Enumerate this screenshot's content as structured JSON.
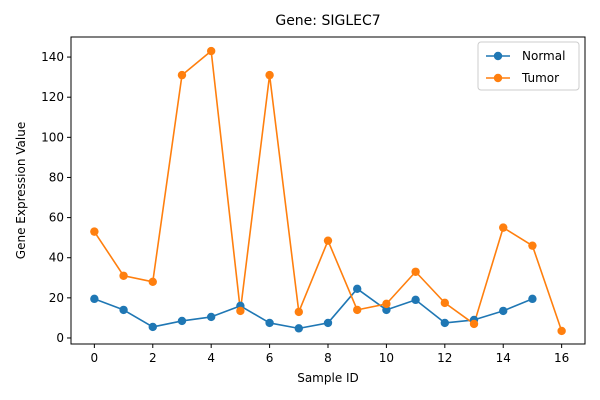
{
  "chart_data": {
    "type": "line",
    "title": "Gene: SIGLEC7",
    "xlabel": "Sample ID",
    "ylabel": "Gene Expression Value",
    "xlim": [
      -0.8,
      16.8
    ],
    "ylim": [
      -3,
      150
    ],
    "xticks": [
      0,
      2,
      4,
      6,
      8,
      10,
      12,
      14,
      16
    ],
    "yticks": [
      0,
      20,
      40,
      60,
      80,
      100,
      120,
      140
    ],
    "grid": false,
    "legend_position": "top-right",
    "series": [
      {
        "name": "Normal",
        "color": "#1f77b4",
        "x": [
          0,
          1,
          2,
          3,
          4,
          5,
          6,
          7,
          8,
          9,
          10,
          11,
          12,
          13,
          14,
          15
        ],
        "y": [
          19.5,
          14,
          5.5,
          8.5,
          10.5,
          16,
          7.5,
          4.8,
          7.5,
          24.5,
          14,
          19,
          7.5,
          9,
          13.5,
          19.5
        ]
      },
      {
        "name": "Tumor",
        "color": "#ff7f0e",
        "x": [
          0,
          1,
          2,
          3,
          4,
          5,
          6,
          7,
          8,
          9,
          10,
          11,
          12,
          13,
          14,
          15,
          16
        ],
        "y": [
          53,
          31,
          28,
          131,
          143,
          13.5,
          131,
          13,
          48.5,
          14,
          17,
          33,
          17.5,
          7,
          55,
          46,
          3.5
        ]
      }
    ]
  }
}
